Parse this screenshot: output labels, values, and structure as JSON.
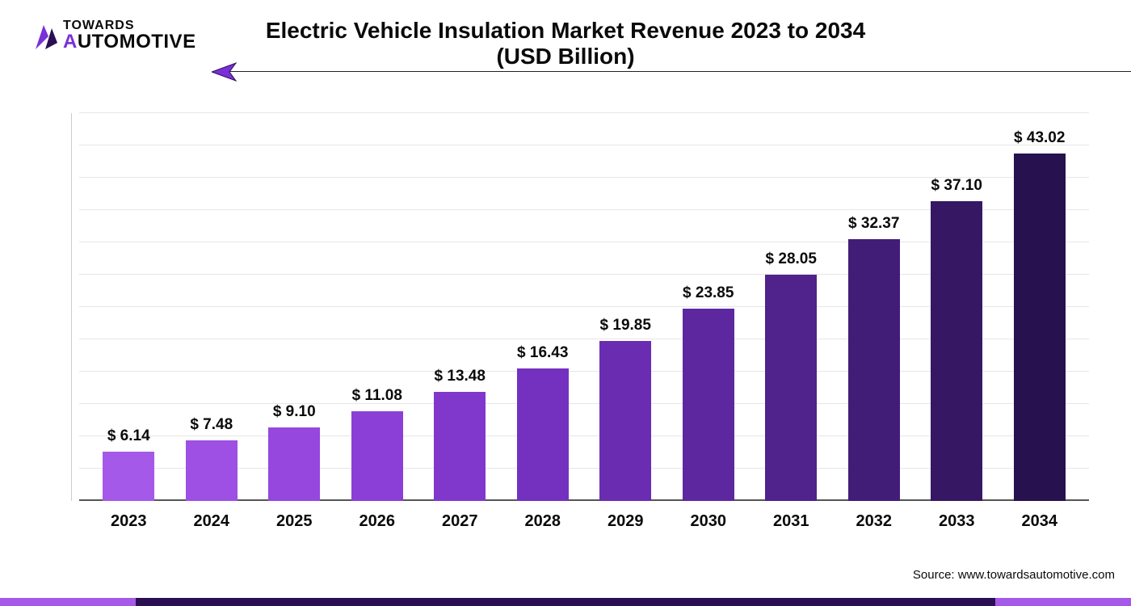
{
  "logo": {
    "line1": "TOWARDS",
    "line2_prefix_char": "A",
    "line2_rest": "UTOMOTIVE",
    "mark_color_a": "#7b2fd6",
    "mark_color_b": "#2a0f52"
  },
  "title": {
    "line1": "Electric Vehicle Insulation Market Revenue 2023 to 2034",
    "line2": "(USD Billion)",
    "fontsize": 28,
    "color": "#0a0a0a"
  },
  "decor": {
    "line_color": "#222222",
    "arrow_fill": "#7b2fd6",
    "arrow_stroke": "#2a0f52"
  },
  "chart": {
    "type": "bar",
    "categories": [
      "2023",
      "2024",
      "2025",
      "2026",
      "2027",
      "2028",
      "2029",
      "2030",
      "2031",
      "2032",
      "2033",
      "2034"
    ],
    "values": [
      6.14,
      7.48,
      9.1,
      11.08,
      13.48,
      16.43,
      19.85,
      23.85,
      28.05,
      32.37,
      37.1,
      43.02
    ],
    "value_labels": [
      "$ 6.14",
      "$ 7.48",
      "$ 9.10",
      "$ 11.08",
      "$ 13.48",
      "$ 16.43",
      "$ 19.85",
      "$ 23.85",
      "$ 28.05",
      "$ 32.37",
      "$ 37.10",
      "$ 43.02"
    ],
    "bar_colors": [
      "#a559e8",
      "#9d50e3",
      "#9547de",
      "#8b3fd6",
      "#8038cc",
      "#7431c0",
      "#6a2cb1",
      "#5d27a0",
      "#4f228c",
      "#421d78",
      "#351763",
      "#27114e"
    ],
    "ylim": [
      0,
      48
    ],
    "grid_count": 12,
    "grid_color": "#e6e6e6",
    "axis_color": "#555555",
    "background_color": "#ffffff",
    "label_fontsize": 19,
    "xlabel_fontsize": 20,
    "bar_width_pct": 62
  },
  "source": {
    "text": "Source: www.towardsautomotive.com",
    "fontsize": 15,
    "color": "#0a0a0a"
  },
  "footer": {
    "segments": [
      {
        "left_pct": 0,
        "width_pct": 12,
        "color": "#a559e8"
      },
      {
        "left_pct": 12,
        "width_pct": 76,
        "color": "#2a0f52"
      },
      {
        "left_pct": 88,
        "width_pct": 12,
        "color": "#a559e8"
      }
    ]
  }
}
